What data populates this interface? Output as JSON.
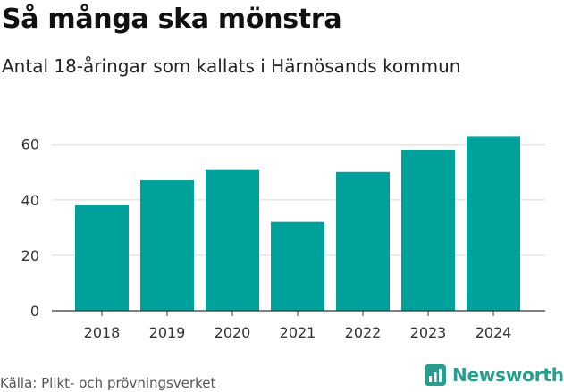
{
  "header": {
    "title": "Så många ska mönstra",
    "subtitle": "Antal 18-åringar som kallats i Härnösands kommun"
  },
  "footer": {
    "source": "Källa: Plikt- och prövningsverket",
    "brand": "Newsworthy"
  },
  "colors": {
    "bar": "#00a19a",
    "brand": "#2a9d8f",
    "grid": "#d9d9d9"
  },
  "chart_data": {
    "type": "bar",
    "categories": [
      "2018",
      "2019",
      "2020",
      "2021",
      "2022",
      "2023",
      "2024"
    ],
    "values": [
      38,
      47,
      51,
      32,
      50,
      58,
      63
    ],
    "ylim": [
      0,
      67
    ],
    "yticks": [
      0,
      20,
      40,
      60
    ],
    "grid": true,
    "legend": "none"
  }
}
